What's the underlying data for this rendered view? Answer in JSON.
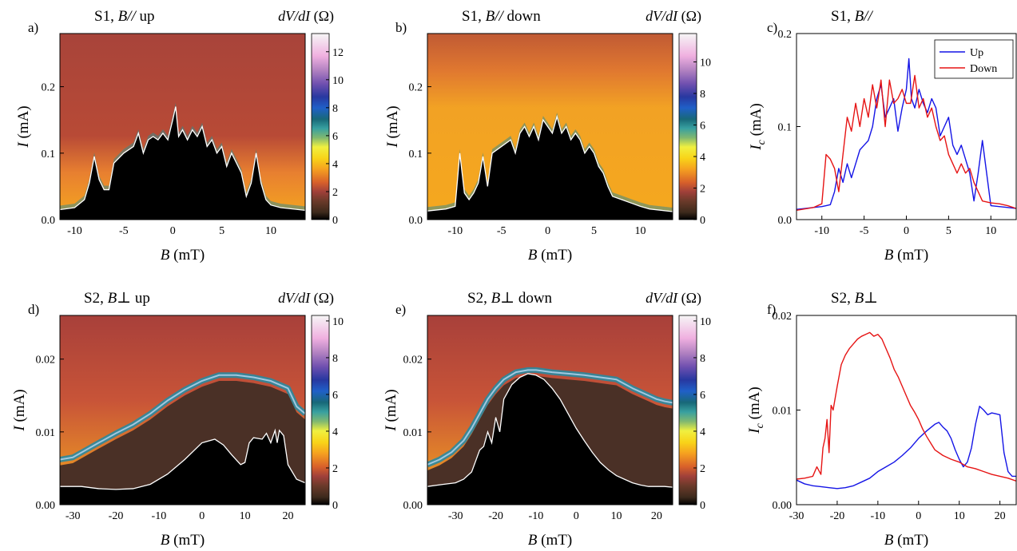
{
  "chart_data": [
    {
      "panel": "a)",
      "type": "heatmap",
      "title": "S1, B// up",
      "title_parts": [
        "S1,",
        "B//",
        "up"
      ],
      "xlabel_parts": [
        "B",
        "(mT)"
      ],
      "ylabel_parts": [
        "I",
        "(mA)"
      ],
      "xlim": [
        -11.5,
        13.5
      ],
      "ylim": [
        0,
        0.28
      ],
      "xticks": [
        -10,
        -5,
        0,
        5,
        10
      ],
      "xtick_labels": [
        "-10",
        "-5",
        "0",
        "5",
        "10"
      ],
      "yticks": [
        0,
        0.1,
        0.2
      ],
      "ytick_labels": [
        "0.0",
        "0.1",
        "0.2"
      ],
      "colorbar": {
        "label_parts": [
          "dV/dI",
          "(Ω)"
        ],
        "ticks": [
          0,
          2,
          4,
          6,
          8,
          10,
          12
        ],
        "max": 13.3
      },
      "critical_current": {
        "x": [
          -11.5,
          -10,
          -9,
          -8.5,
          -8,
          -7.5,
          -7,
          -6.5,
          -6,
          -5,
          -4,
          -3.5,
          -3,
          -2.5,
          -2,
          -1.5,
          -1,
          -0.5,
          0,
          0.3,
          0.6,
          1,
          1.5,
          2,
          2.5,
          3,
          3.5,
          4,
          4.5,
          5,
          5.5,
          6,
          6.5,
          7,
          7.5,
          8,
          8.5,
          9,
          9.5,
          10,
          11,
          13.5
        ],
        "y": [
          0.015,
          0.018,
          0.03,
          0.055,
          0.095,
          0.06,
          0.045,
          0.045,
          0.085,
          0.1,
          0.11,
          0.13,
          0.1,
          0.12,
          0.125,
          0.12,
          0.13,
          0.12,
          0.15,
          0.17,
          0.125,
          0.135,
          0.12,
          0.135,
          0.125,
          0.14,
          0.11,
          0.12,
          0.1,
          0.11,
          0.08,
          0.1,
          0.085,
          0.07,
          0.035,
          0.055,
          0.1,
          0.055,
          0.03,
          0.022,
          0.018,
          0.014
        ]
      }
    },
    {
      "panel": "b)",
      "type": "heatmap",
      "title": "S1, B// down",
      "title_parts": [
        "S1,",
        "B//",
        "down"
      ],
      "xlabel_parts": [
        "B",
        "(mT)"
      ],
      "ylabel_parts": [
        "I",
        "(mA)"
      ],
      "xlim": [
        -13,
        13.5
      ],
      "ylim": [
        0,
        0.28
      ],
      "xticks": [
        -10,
        -5,
        0,
        5,
        10
      ],
      "xtick_labels": [
        "-10",
        "-5",
        "0",
        "5",
        "10"
      ],
      "yticks": [
        0,
        0.1,
        0.2
      ],
      "ytick_labels": [
        "0.0",
        "0.1",
        "0.2"
      ],
      "colorbar": {
        "label_parts": [
          "dV/dI",
          "(Ω)"
        ],
        "ticks": [
          0,
          2,
          4,
          6,
          8,
          10
        ],
        "max": 11.8
      },
      "critical_current": {
        "x": [
          -13,
          -11,
          -10,
          -9.5,
          -9,
          -8.5,
          -8,
          -7.5,
          -7,
          -6.5,
          -6,
          -5,
          -4,
          -3.5,
          -3,
          -2.5,
          -2,
          -1.5,
          -1,
          -0.5,
          0,
          0.5,
          1,
          1.5,
          2,
          2.5,
          3,
          3.5,
          4,
          4.5,
          5,
          5.5,
          6,
          6.5,
          7,
          8,
          9,
          10,
          11,
          13.5
        ],
        "y": [
          0.013,
          0.016,
          0.02,
          0.1,
          0.04,
          0.03,
          0.04,
          0.055,
          0.095,
          0.05,
          0.1,
          0.11,
          0.12,
          0.1,
          0.13,
          0.14,
          0.125,
          0.14,
          0.12,
          0.15,
          0.14,
          0.13,
          0.155,
          0.13,
          0.14,
          0.12,
          0.13,
          0.12,
          0.1,
          0.11,
          0.1,
          0.08,
          0.07,
          0.05,
          0.035,
          0.03,
          0.025,
          0.02,
          0.016,
          0.012
        ]
      }
    },
    {
      "panel": "c)",
      "type": "line",
      "title": "S1, B//",
      "title_parts": [
        "S1,",
        "B//"
      ],
      "xlabel_parts": [
        "B",
        "(mT)"
      ],
      "ylabel_parts": [
        "I",
        "c",
        "(mA)"
      ],
      "xlim": [
        -13,
        13
      ],
      "ylim": [
        0,
        0.2
      ],
      "xticks": [
        -10,
        -5,
        0,
        5,
        10
      ],
      "xtick_labels": [
        "-10",
        "-5",
        "0",
        "5",
        "10"
      ],
      "yticks": [
        0,
        0.1,
        0.2
      ],
      "ytick_labels": [
        "0.0",
        "0.1",
        "0.2"
      ],
      "legend": "top-right",
      "series": [
        {
          "name": "Up",
          "color": "#1414e6",
          "x": [
            -13,
            -12,
            -11,
            -10,
            -9.5,
            -9,
            -8.5,
            -8,
            -7.5,
            -7,
            -6.5,
            -6,
            -5.5,
            -5,
            -4.5,
            -4,
            -3.5,
            -3,
            -2.5,
            -2,
            -1.5,
            -1,
            -0.5,
            0,
            0.3,
            0.6,
            1,
            1.5,
            2,
            2.5,
            3,
            3.5,
            4,
            4.5,
            5,
            5.5,
            6,
            6.5,
            7,
            7.5,
            8,
            8.5,
            9,
            9.5,
            10,
            11,
            12,
            13
          ],
          "y": [
            0.011,
            0.012,
            0.013,
            0.014,
            0.015,
            0.016,
            0.03,
            0.055,
            0.04,
            0.06,
            0.045,
            0.06,
            0.075,
            0.08,
            0.085,
            0.1,
            0.13,
            0.145,
            0.11,
            0.12,
            0.13,
            0.095,
            0.12,
            0.14,
            0.173,
            0.13,
            0.12,
            0.14,
            0.125,
            0.115,
            0.13,
            0.12,
            0.09,
            0.1,
            0.11,
            0.08,
            0.07,
            0.08,
            0.065,
            0.05,
            0.02,
            0.05,
            0.085,
            0.05,
            0.015,
            0.014,
            0.013,
            0.012
          ]
        },
        {
          "name": "Down",
          "color": "#e61414",
          "x": [
            -13,
            -11,
            -10,
            -9.5,
            -9,
            -8.5,
            -8,
            -7.5,
            -7,
            -6.5,
            -6,
            -5.5,
            -5,
            -4.5,
            -4,
            -3.5,
            -3,
            -2.5,
            -2,
            -1.5,
            -1,
            -0.5,
            0,
            0.5,
            1,
            1.5,
            2,
            2.5,
            3,
            3.5,
            4,
            4.5,
            5,
            5.5,
            6,
            6.5,
            7,
            7.5,
            8,
            8.5,
            9,
            10,
            11,
            12,
            13
          ],
          "y": [
            0.01,
            0.013,
            0.017,
            0.07,
            0.065,
            0.055,
            0.03,
            0.07,
            0.11,
            0.095,
            0.125,
            0.1,
            0.13,
            0.11,
            0.145,
            0.12,
            0.15,
            0.1,
            0.15,
            0.125,
            0.13,
            0.14,
            0.125,
            0.125,
            0.155,
            0.12,
            0.13,
            0.11,
            0.12,
            0.1,
            0.085,
            0.09,
            0.07,
            0.06,
            0.05,
            0.06,
            0.05,
            0.055,
            0.04,
            0.03,
            0.02,
            0.018,
            0.017,
            0.015,
            0.012
          ]
        }
      ]
    },
    {
      "panel": "d)",
      "type": "heatmap",
      "title": "S2, B⊥ up",
      "title_parts": [
        "S2,",
        "B⊥",
        "up"
      ],
      "xlabel_parts": [
        "B",
        "(mT)"
      ],
      "ylabel_parts": [
        "I",
        "(mA)"
      ],
      "xlim": [
        -33,
        24
      ],
      "ylim": [
        0,
        0.026
      ],
      "xticks": [
        -30,
        -20,
        -10,
        0,
        10,
        20
      ],
      "xtick_labels": [
        "-30",
        "-20",
        "-10",
        "0",
        "10",
        "20"
      ],
      "yticks": [
        0,
        0.01,
        0.02
      ],
      "ytick_labels": [
        "0.00",
        "0.01",
        "0.02"
      ],
      "colorbar": {
        "label_parts": [
          "dV/dI",
          "(Ω)"
        ],
        "ticks": [
          0,
          2,
          4,
          6,
          8,
          10
        ],
        "max": 10.3
      },
      "critical_current": {
        "x": [
          -33,
          -28,
          -24,
          -20,
          -16,
          -12,
          -8,
          -4,
          0,
          3,
          5,
          7,
          9,
          10,
          11,
          12,
          14,
          15,
          16,
          17,
          17.5,
          18,
          19,
          20,
          22,
          24
        ],
        "y": [
          0.0025,
          0.0025,
          0.0022,
          0.0021,
          0.0022,
          0.0028,
          0.0042,
          0.0062,
          0.0085,
          0.009,
          0.0082,
          0.0068,
          0.0055,
          0.0058,
          0.0085,
          0.0092,
          0.009,
          0.0098,
          0.0085,
          0.0102,
          0.0085,
          0.0102,
          0.0095,
          0.0055,
          0.0035,
          0.003
        ]
      },
      "ridge": {
        "x": [
          -33,
          -30,
          -27,
          -24,
          -20,
          -16,
          -12,
          -8,
          -4,
          0,
          4,
          8,
          12,
          16,
          20,
          22,
          24
        ],
        "y": [
          0.0062,
          0.0065,
          0.0075,
          0.0085,
          0.0098,
          0.011,
          0.0125,
          0.0143,
          0.0158,
          0.017,
          0.0178,
          0.0178,
          0.0175,
          0.017,
          0.016,
          0.0135,
          0.0125
        ]
      }
    },
    {
      "panel": "e)",
      "type": "heatmap",
      "title": "S2, B⊥ down",
      "title_parts": [
        "S2,",
        "B⊥",
        "down"
      ],
      "xlabel_parts": [
        "B",
        "(mT)"
      ],
      "ylabel_parts": [
        "I",
        "(mA)"
      ],
      "xlim": [
        -37,
        24
      ],
      "ylim": [
        0,
        0.026
      ],
      "xticks": [
        -30,
        -20,
        -10,
        0,
        10,
        20
      ],
      "xtick_labels": [
        "-30",
        "-20",
        "-10",
        "0",
        "10",
        "20"
      ],
      "yticks": [
        0,
        0.01,
        0.02
      ],
      "ytick_labels": [
        "0.00",
        "0.01",
        "0.02"
      ],
      "colorbar": {
        "label_parts": [
          "dV/dI",
          "(Ω)"
        ],
        "ticks": [
          0,
          2,
          4,
          6,
          8,
          10
        ],
        "max": 10.3
      },
      "critical_current": {
        "x": [
          -37,
          -33,
          -30,
          -28,
          -26,
          -25,
          -24,
          -23,
          -22,
          -21,
          -20,
          -19,
          -18,
          -16,
          -14,
          -12,
          -10,
          -8,
          -6,
          -4,
          -2,
          0,
          2,
          4,
          6,
          8,
          10,
          12,
          14,
          16,
          18,
          20,
          22,
          24
        ],
        "y": [
          0.0025,
          0.0028,
          0.003,
          0.0035,
          0.0045,
          0.006,
          0.0075,
          0.008,
          0.01,
          0.0085,
          0.012,
          0.01,
          0.0145,
          0.0165,
          0.0175,
          0.018,
          0.0178,
          0.0172,
          0.016,
          0.0145,
          0.0125,
          0.0105,
          0.0088,
          0.0072,
          0.0058,
          0.0048,
          0.004,
          0.0035,
          0.003,
          0.0027,
          0.0025,
          0.0025,
          0.0025,
          0.0024
        ]
      },
      "ridge": {
        "x": [
          -37,
          -34,
          -31,
          -28,
          -26,
          -24,
          -22,
          -20,
          -18,
          -15,
          -12,
          -10,
          -6,
          -2,
          2,
          6,
          10,
          14,
          18,
          20,
          22,
          24
        ],
        "y": [
          0.0055,
          0.0062,
          0.0072,
          0.0088,
          0.0105,
          0.0125,
          0.0145,
          0.016,
          0.0172,
          0.0182,
          0.0185,
          0.0185,
          0.0182,
          0.018,
          0.0178,
          0.0175,
          0.0172,
          0.016,
          0.015,
          0.0145,
          0.0142,
          0.014
        ]
      }
    },
    {
      "panel": "f)",
      "type": "line",
      "title": "S2, B⊥",
      "title_parts": [
        "S2,",
        "B⊥"
      ],
      "xlabel_parts": [
        "B",
        "(mT)"
      ],
      "ylabel_parts": [
        "I",
        "c",
        "(mA)"
      ],
      "xlim": [
        -30,
        24
      ],
      "ylim": [
        0,
        0.02
      ],
      "xticks": [
        -30,
        -20,
        -10,
        0,
        10,
        20
      ],
      "xtick_labels": [
        "-30",
        "-20",
        "-10",
        "0",
        "10",
        "20"
      ],
      "yticks": [
        0,
        0.01,
        0.02
      ],
      "ytick_labels": [
        "0.00",
        "0.01",
        "0.02"
      ],
      "series": [
        {
          "name": "Up",
          "color": "#1414e6",
          "x": [
            -30,
            -28,
            -26,
            -24,
            -22,
            -20,
            -18,
            -16,
            -14,
            -12,
            -10,
            -8,
            -6,
            -4,
            -2,
            0,
            2,
            4,
            5,
            6,
            7,
            8,
            9,
            10,
            11,
            12,
            13,
            14,
            15,
            16,
            17,
            18,
            19,
            20,
            21,
            22,
            23,
            24
          ],
          "y": [
            0.0026,
            0.0022,
            0.002,
            0.0019,
            0.0018,
            0.0017,
            0.0018,
            0.002,
            0.0024,
            0.0028,
            0.0035,
            0.004,
            0.0045,
            0.0052,
            0.006,
            0.007,
            0.0078,
            0.0085,
            0.0087,
            0.0082,
            0.0078,
            0.007,
            0.0058,
            0.0048,
            0.004,
            0.0045,
            0.006,
            0.0085,
            0.0104,
            0.01,
            0.0095,
            0.0097,
            0.0096,
            0.0095,
            0.0055,
            0.0035,
            0.003,
            0.003
          ]
        },
        {
          "name": "Down",
          "color": "#e61414",
          "x": [
            -30,
            -28,
            -26,
            -25,
            -24,
            -23.5,
            -23,
            -22.5,
            -22,
            -21.5,
            -21,
            -20,
            -19,
            -18,
            -17,
            -16,
            -15,
            -14,
            -13,
            -12,
            -11,
            -10,
            -9,
            -8,
            -7,
            -6,
            -5,
            -4,
            -3,
            -2,
            -1,
            0,
            1,
            2,
            3,
            4,
            6,
            8,
            10,
            12,
            14,
            16,
            18,
            20,
            22,
            24
          ],
          "y": [
            0.0027,
            0.0028,
            0.003,
            0.004,
            0.0032,
            0.006,
            0.007,
            0.009,
            0.0055,
            0.0105,
            0.01,
            0.0125,
            0.0148,
            0.0158,
            0.0165,
            0.017,
            0.0175,
            0.0178,
            0.018,
            0.0182,
            0.0178,
            0.018,
            0.0175,
            0.0165,
            0.0155,
            0.0143,
            0.0135,
            0.0125,
            0.0115,
            0.0105,
            0.0098,
            0.009,
            0.008,
            0.0072,
            0.0065,
            0.0058,
            0.0052,
            0.0048,
            0.0045,
            0.004,
            0.0038,
            0.0035,
            0.0032,
            0.003,
            0.0028,
            0.0025
          ]
        }
      ]
    }
  ]
}
